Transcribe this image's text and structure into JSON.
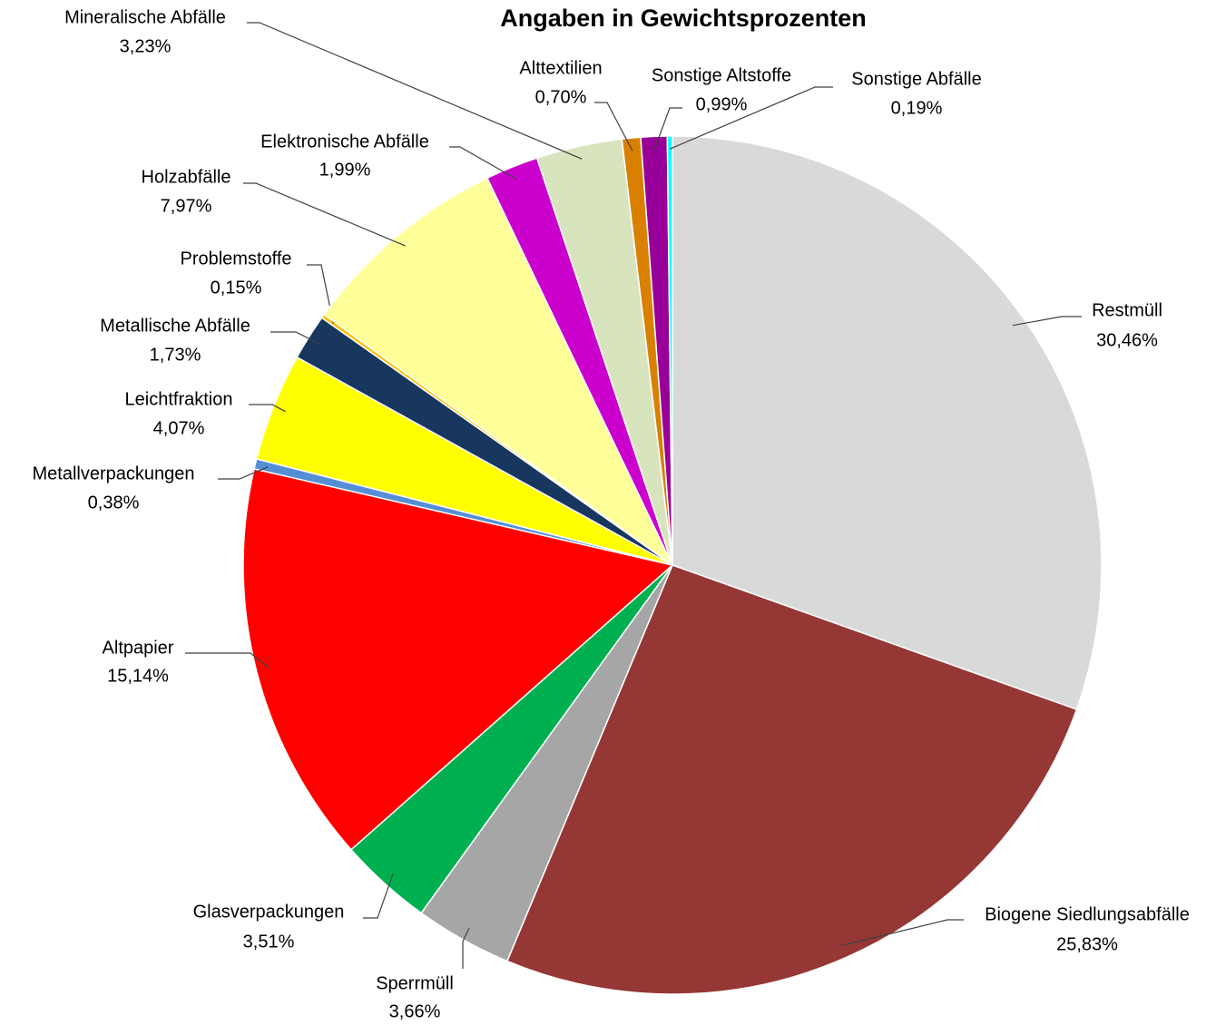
{
  "chart_data": {
    "type": "pie",
    "title": "Angaben in Gewichtsprozenten",
    "categories": [
      "Restmüll",
      "Biogene Siedlungsabfälle",
      "Sperrmüll",
      "Glasverpackungen",
      "Altpapier",
      "Metallverpackungen",
      "Leichtfraktion",
      "Metallische Abfälle",
      "Problemstoffe",
      "Holzabfälle",
      "Elektronische Abfälle",
      "Mineralische Abfälle",
      "Alttextilien",
      "Sonstige Altstoffe",
      "Sonstige Abfälle"
    ],
    "values": [
      30.46,
      25.83,
      3.66,
      3.51,
      15.14,
      0.38,
      4.07,
      1.73,
      0.15,
      7.97,
      1.99,
      3.23,
      0.7,
      0.99,
      0.19
    ],
    "value_labels": [
      "30,46%",
      "25,83%",
      "3,66%",
      "3,51%",
      "15,14%",
      "0,38%",
      "4,07%",
      "1,73%",
      "0,15%",
      "7,97%",
      "1,99%",
      "3,23%",
      "0,70%",
      "0,99%",
      "0,19%"
    ],
    "colors": [
      "#d9d9d9",
      "#953735",
      "#a6a6a6",
      "#00b050",
      "#ff0000",
      "#558ed5",
      "#ffff00",
      "#17375e",
      "#ffc000",
      "#ffff99",
      "#cc00cc",
      "#d7e4bd",
      "#d98000",
      "#990099",
      "#00ffff"
    ]
  }
}
